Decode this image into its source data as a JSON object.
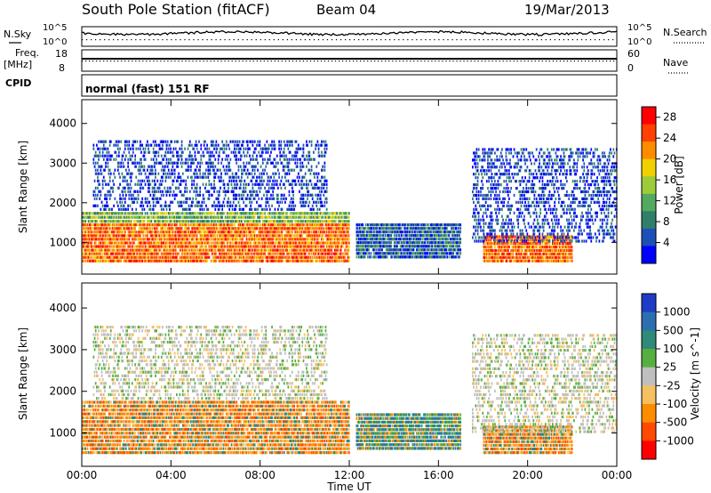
{
  "header": {
    "station": "South Pole Station (fitACF)",
    "beam": "Beam 04",
    "date": "19/Mar/2013"
  },
  "top_panels": {
    "nsky_label": "N.Sky",
    "nsearch_label": "N.Search",
    "freq_label_1": "Freq.",
    "freq_label_2": "[MHz]",
    "nave_label": "Nave",
    "cpid_label": "CPID",
    "cpid_value": "normal (fast) 151 RF",
    "noise_ticks_left": [
      "10^5",
      "10^0"
    ],
    "noise_ticks_right": [
      "10^5",
      "10^0"
    ],
    "freq_ticks_left": [
      "18",
      "8"
    ],
    "nave_ticks_right": [
      "60",
      "0"
    ]
  },
  "chart_data": [
    {
      "type": "heatmap",
      "panel": "power",
      "ylabel": "Slant Range [km]",
      "xlabel": "",
      "x_ticks": [
        "00:00",
        "04:00",
        "08:00",
        "12:00",
        "16:00",
        "20:00",
        "00:00"
      ],
      "y_ticks": [
        1000,
        2000,
        3000,
        4000
      ],
      "ylim": [
        200,
        4600
      ],
      "xlim_hours": [
        0,
        24
      ],
      "colorbar": {
        "label": "Power [dB]",
        "ticks": [
          "4",
          "8",
          "12",
          "16",
          "20",
          "24",
          "28"
        ],
        "range": [
          0,
          30
        ],
        "colors": [
          "#0000ff",
          "#1e4fb8",
          "#2f7f6a",
          "#55a860",
          "#9ccc3a",
          "#f0d000",
          "#ff8c00",
          "#ff4000",
          "#ff0000"
        ]
      },
      "echo_regions": [
        {
          "t0": 0.0,
          "t1": 12.0,
          "r0": 500,
          "r1": 1500,
          "level": "high"
        },
        {
          "t0": 0.0,
          "t1": 12.0,
          "r0": 1500,
          "r1": 1800,
          "level": "mid"
        },
        {
          "t0": 0.5,
          "t1": 11.0,
          "r0": 1800,
          "r1": 3600,
          "level": "low"
        },
        {
          "t0": 12.3,
          "t1": 17.0,
          "r0": 600,
          "r1": 1500,
          "level": "lowmid"
        },
        {
          "t0": 18.0,
          "t1": 22.0,
          "r0": 500,
          "r1": 1200,
          "level": "high"
        },
        {
          "t0": 17.5,
          "t1": 24.0,
          "r0": 1000,
          "r1": 3400,
          "level": "low"
        }
      ]
    },
    {
      "type": "heatmap",
      "panel": "velocity",
      "ylabel": "Slant Range [km]",
      "xlabel": "Time UT",
      "x_ticks": [
        "00:00",
        "04:00",
        "08:00",
        "12:00",
        "16:00",
        "20:00",
        "00:00"
      ],
      "y_ticks": [
        1000,
        2000,
        3000,
        4000
      ],
      "ylim": [
        200,
        4600
      ],
      "xlim_hours": [
        0,
        24
      ],
      "colorbar": {
        "label": "Velocity [m s^-1]",
        "ticks": [
          "1000",
          "500",
          "100",
          "25",
          "-25",
          "-100",
          "-500",
          "-1000"
        ],
        "range": [
          -1000,
          1000
        ],
        "colors": [
          "#1e3cc8",
          "#2b6fb0",
          "#2f8a7a",
          "#56b040",
          "#bfbfbf",
          "#f5c060",
          "#ff8c00",
          "#ff4a00",
          "#ff0000"
        ]
      },
      "echo_regions": [
        {
          "t0": 0.0,
          "t1": 12.0,
          "r0": 500,
          "r1": 1800,
          "level": "orange"
        },
        {
          "t0": 0.5,
          "t1": 11.0,
          "r0": 1800,
          "r1": 3600,
          "level": "grey"
        },
        {
          "t0": 12.3,
          "t1": 17.0,
          "r0": 600,
          "r1": 1500,
          "level": "teal"
        },
        {
          "t0": 18.0,
          "t1": 22.0,
          "r0": 500,
          "r1": 1200,
          "level": "orange"
        },
        {
          "t0": 17.5,
          "t1": 24.0,
          "r0": 1000,
          "r1": 3400,
          "level": "grey"
        }
      ]
    }
  ]
}
